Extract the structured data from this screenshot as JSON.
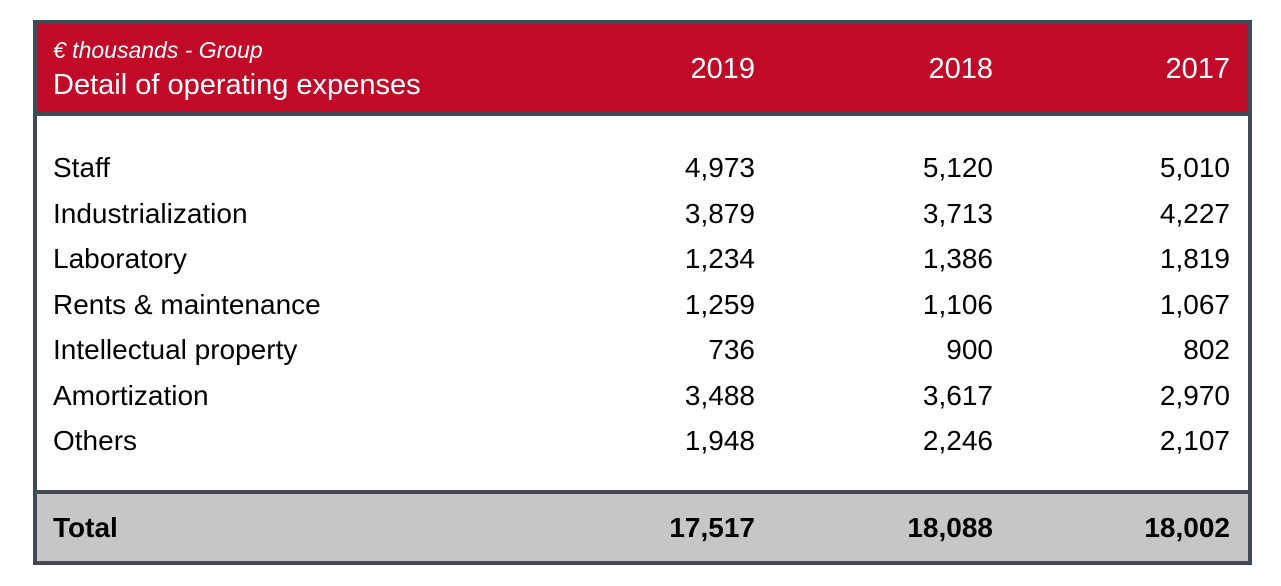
{
  "header": {
    "subtitle": "€ thousands - Group",
    "title": "Detail of operating expenses",
    "years": [
      "2019",
      "2018",
      "2017"
    ]
  },
  "rows": [
    {
      "label": "Staff",
      "values": [
        "4,973",
        "5,120",
        "5,010"
      ]
    },
    {
      "label": "Industrialization",
      "values": [
        "3,879",
        "3,713",
        "4,227"
      ]
    },
    {
      "label": "Laboratory",
      "values": [
        "1,234",
        "1,386",
        "1,819"
      ]
    },
    {
      "label": "Rents & maintenance",
      "values": [
        "1,259",
        "1,106",
        "1,067"
      ]
    },
    {
      "label": "Intellectual property",
      "values": [
        "736",
        "900",
        "802"
      ]
    },
    {
      "label": "Amortization",
      "values": [
        "3,488",
        "3,617",
        "2,970"
      ]
    },
    {
      "label": "Others",
      "values": [
        "1,948",
        "2,246",
        "2,107"
      ]
    }
  ],
  "total": {
    "label": "Total",
    "values": [
      "17,517",
      "18,088",
      "18,002"
    ]
  },
  "colors": {
    "header_bg": "#c00a27",
    "border": "#3e4b57",
    "total_bg": "#c6c6c6"
  }
}
